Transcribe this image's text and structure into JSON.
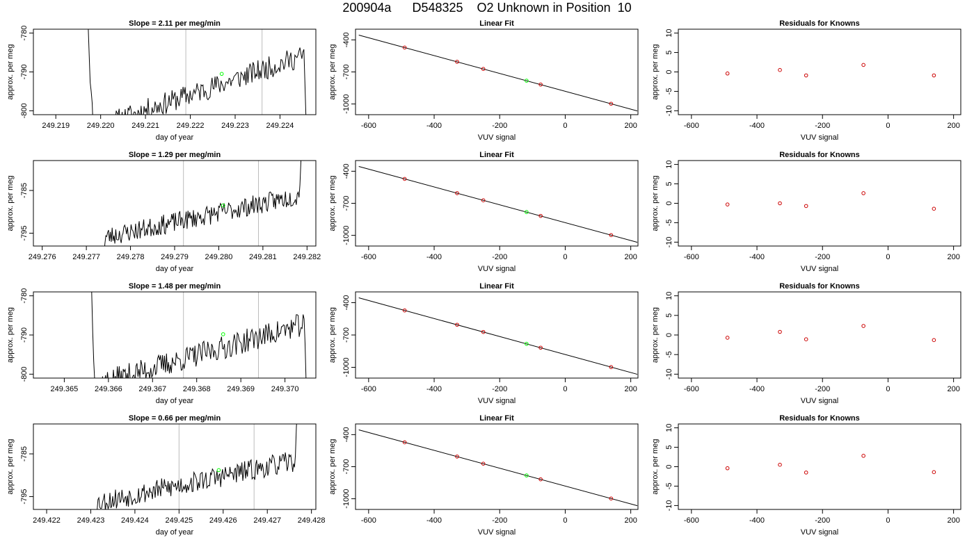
{
  "figure": {
    "title": "200904a      D548325    O2 Unknown in Position  10"
  },
  "colors": {
    "trace": "#000000",
    "unknown_point": "#00ff00",
    "known_point": "#cc0000",
    "guide_line": "#bbbbbb",
    "fit_line": "#000000"
  },
  "chart_data": [
    {
      "type": "line",
      "title": "Slope =  2.11  per meg/min",
      "xlabel": "day of year",
      "ylabel": "approx. per meg",
      "xlim": [
        249.2185,
        249.2248
      ],
      "ylim": [
        -801.0,
        -779.0
      ],
      "xticks": [
        "249.219",
        "249.220",
        "249.221",
        "249.222",
        "249.223",
        "249.224"
      ],
      "xtick_values": [
        249.219,
        249.22,
        249.221,
        249.222,
        249.223,
        249.224
      ],
      "yticks": [
        "-800",
        "-790",
        "-780"
      ],
      "ytick_values": [
        -800,
        -790,
        -780
      ],
      "vlines": [
        249.2219,
        249.2236
      ],
      "series": [
        {
          "x_start": 249.2197,
          "x_end": 249.2246,
          "base_start": -805,
          "base_end": -785.5,
          "front_y": -770,
          "front_len": 8,
          "tail_y": -808,
          "tail_len": 3,
          "seed": 11,
          "noise": 1.6
        }
      ],
      "highlight": {
        "x": 249.2227,
        "y": -790.5
      }
    },
    {
      "type": "scatter",
      "title": "Linear Fit",
      "xlabel": "VUV signal",
      "ylabel": "approx. per meg",
      "xlim": [
        -640,
        222
      ],
      "ylim": [
        -1100,
        -300
      ],
      "xticks": [
        "-600",
        "-400",
        "-200",
        "0",
        "200"
      ],
      "xtick_values": [
        -600,
        -400,
        -200,
        0,
        200
      ],
      "yticks": [
        "-1000",
        "-700",
        "-400"
      ],
      "ytick_values": [
        -1000,
        -700,
        -400
      ],
      "fit_line": {
        "x": [
          -630,
          220
        ],
        "y": [
          -355,
          -1065
        ]
      },
      "knowns": {
        "x": [
          -490,
          -330,
          -250,
          -75,
          140
        ],
        "y": [
          -472,
          -605,
          -672,
          -818,
          -998
        ]
      },
      "unknown": {
        "x": [
          -118
        ],
        "y": [
          -782
        ]
      }
    },
    {
      "type": "scatter",
      "title": "Residuals for Knowns",
      "xlabel": "VUV signal",
      "ylabel": "approx. per meg",
      "xlim": [
        -640,
        222
      ],
      "ylim": [
        -11,
        11
      ],
      "xticks": [
        "-600",
        "-400",
        "-200",
        "0",
        "200"
      ],
      "xtick_values": [
        -600,
        -400,
        -200,
        0,
        200
      ],
      "yticks": [
        "-10",
        "-5",
        "0",
        "5",
        "10"
      ],
      "ytick_values": [
        -10,
        -5,
        0,
        5,
        10
      ],
      "knowns": {
        "x": [
          -490,
          -330,
          -250,
          -75,
          140
        ],
        "y": [
          -0.4,
          0.5,
          -0.9,
          1.8,
          -0.9
        ]
      }
    },
    {
      "type": "line",
      "title": "Slope =  1.29  per meg/min",
      "xlabel": "day of year",
      "ylabel": "approx. per meg",
      "xlim": [
        249.2758,
        249.2822
      ],
      "ylim": [
        -798,
        -778
      ],
      "xticks": [
        "249.276",
        "249.277",
        "249.278",
        "249.279",
        "249.280",
        "249.281",
        "249.282"
      ],
      "xtick_values": [
        249.276,
        249.277,
        249.278,
        249.279,
        249.28,
        249.281,
        249.282
      ],
      "yticks": [
        "-795",
        "-785"
      ],
      "ytick_values": [
        -795,
        -785
      ],
      "vlines": [
        249.2792,
        249.2809
      ],
      "series": [
        {
          "x_start": 249.2774,
          "x_end": 249.2819,
          "base_start": -796,
          "base_end": -786,
          "front_y": -800,
          "front_len": 2,
          "tail_y": -770,
          "tail_len": 4,
          "seed": 23,
          "noise": 1.3
        }
      ],
      "highlight": {
        "x": 249.2801,
        "y": -788.5
      }
    },
    {
      "type": "scatter",
      "title": "Linear Fit",
      "xlabel": "VUV signal",
      "ylabel": "approx. per meg",
      "xlim": [
        -640,
        222
      ],
      "ylim": [
        -1100,
        -300
      ],
      "xticks": [
        "-600",
        "-400",
        "-200",
        "0",
        "200"
      ],
      "xtick_values": [
        -600,
        -400,
        -200,
        0,
        200
      ],
      "yticks": [
        "-1000",
        "-700",
        "-400"
      ],
      "ytick_values": [
        -1000,
        -700,
        -400
      ],
      "fit_line": {
        "x": [
          -630,
          220
        ],
        "y": [
          -355,
          -1065
        ]
      },
      "knowns": {
        "x": [
          -490,
          -330,
          -250,
          -75,
          140
        ],
        "y": [
          -472,
          -605,
          -672,
          -818,
          -998
        ]
      },
      "unknown": {
        "x": [
          -118
        ],
        "y": [
          -782
        ]
      }
    },
    {
      "type": "scatter",
      "title": "Residuals for Knowns",
      "xlabel": "VUV signal",
      "ylabel": "approx. per meg",
      "xlim": [
        -640,
        222
      ],
      "ylim": [
        -11,
        11
      ],
      "xticks": [
        "-600",
        "-400",
        "-200",
        "0",
        "200"
      ],
      "xtick_values": [
        -600,
        -400,
        -200,
        0,
        200
      ],
      "yticks": [
        "-10",
        "-5",
        "0",
        "5",
        "10"
      ],
      "ytick_values": [
        -10,
        -5,
        0,
        5,
        10
      ],
      "knowns": {
        "x": [
          -490,
          -330,
          -250,
          -75,
          140
        ],
        "y": [
          -0.3,
          0.0,
          -0.7,
          2.6,
          -1.4
        ]
      }
    },
    {
      "type": "line",
      "title": "Slope =  1.48  per meg/min",
      "xlabel": "day of year",
      "ylabel": "approx. per meg",
      "xlim": [
        249.3643,
        249.3707
      ],
      "ylim": [
        -801.0,
        -779.0
      ],
      "xticks": [
        "249.365",
        "249.366",
        "249.367",
        "249.368",
        "249.369",
        "249.370"
      ],
      "xtick_values": [
        249.365,
        249.366,
        249.367,
        249.368,
        249.369,
        249.37
      ],
      "yticks": [
        "-800",
        "-790",
        "-780"
      ],
      "ytick_values": [
        -800,
        -790,
        -780
      ],
      "vlines": [
        249.3677,
        249.3694
      ],
      "series": [
        {
          "x_start": 249.3656,
          "x_end": 249.3705,
          "base_start": -803,
          "base_end": -787,
          "front_y": -770,
          "front_len": 6,
          "tail_y": -808,
          "tail_len": 3,
          "seed": 37,
          "noise": 1.7
        }
      ],
      "highlight": {
        "x": 249.3686,
        "y": -789.8
      }
    },
    {
      "type": "scatter",
      "title": "Linear Fit",
      "xlabel": "VUV signal",
      "ylabel": "approx. per meg",
      "xlim": [
        -640,
        222
      ],
      "ylim": [
        -1100,
        -300
      ],
      "xticks": [
        "-600",
        "-400",
        "-200",
        "0",
        "200"
      ],
      "xtick_values": [
        -600,
        -400,
        -200,
        0,
        200
      ],
      "yticks": [
        "-1000",
        "-700",
        "-400"
      ],
      "ytick_values": [
        -1000,
        -700,
        -400
      ],
      "fit_line": {
        "x": [
          -630,
          220
        ],
        "y": [
          -355,
          -1065
        ]
      },
      "knowns": {
        "x": [
          -490,
          -330,
          -250,
          -75,
          140
        ],
        "y": [
          -472,
          -605,
          -672,
          -818,
          -998
        ]
      },
      "unknown": {
        "x": [
          -118
        ],
        "y": [
          -782
        ]
      }
    },
    {
      "type": "scatter",
      "title": "Residuals for Knowns",
      "xlabel": "VUV signal",
      "ylabel": "approx. per meg",
      "xlim": [
        -640,
        222
      ],
      "ylim": [
        -11,
        11
      ],
      "xticks": [
        "-600",
        "-400",
        "-200",
        "0",
        "200"
      ],
      "xtick_values": [
        -600,
        -400,
        -200,
        0,
        200
      ],
      "yticks": [
        "-10",
        "-5",
        "0",
        "5",
        "10"
      ],
      "ytick_values": [
        -10,
        -5,
        0,
        5,
        10
      ],
      "knowns": {
        "x": [
          -490,
          -330,
          -250,
          -75,
          140
        ],
        "y": [
          -0.7,
          0.8,
          -1.1,
          2.3,
          -1.3
        ]
      }
    },
    {
      "type": "line",
      "title": "Slope =  0.66  per meg/min",
      "xlabel": "day of year",
      "ylabel": "approx. per meg",
      "xlim": [
        249.4217,
        249.4281
      ],
      "ylim": [
        -798,
        -778
      ],
      "xticks": [
        "249.422",
        "249.423",
        "249.424",
        "249.425",
        "249.426",
        "249.427",
        "249.428"
      ],
      "xtick_values": [
        249.422,
        249.423,
        249.424,
        249.425,
        249.426,
        249.427,
        249.428
      ],
      "yticks": [
        "-795",
        "-785"
      ],
      "ytick_values": [
        -795,
        -785
      ],
      "vlines": [
        249.425,
        249.4267
      ],
      "series": [
        {
          "x_start": 249.4231,
          "x_end": 249.4277,
          "base_start": -796.5,
          "base_end": -786.5,
          "front_y": -802,
          "front_len": 2,
          "tail_y": -768,
          "tail_len": 3,
          "seed": 53,
          "noise": 1.4
        }
      ],
      "highlight": {
        "x": 249.4259,
        "y": -788.8
      }
    },
    {
      "type": "scatter",
      "title": "Linear Fit",
      "xlabel": "VUV signal",
      "ylabel": "approx. per meg",
      "xlim": [
        -640,
        222
      ],
      "ylim": [
        -1100,
        -300
      ],
      "xticks": [
        "-600",
        "-400",
        "-200",
        "0",
        "200"
      ],
      "xtick_values": [
        -600,
        -400,
        -200,
        0,
        200
      ],
      "yticks": [
        "-1000",
        "-700",
        "-400"
      ],
      "ytick_values": [
        -1000,
        -700,
        -400
      ],
      "fit_line": {
        "x": [
          -630,
          220
        ],
        "y": [
          -355,
          -1065
        ]
      },
      "knowns": {
        "x": [
          -490,
          -330,
          -250,
          -75,
          140
        ],
        "y": [
          -472,
          -605,
          -672,
          -818,
          -998
        ]
      },
      "unknown": {
        "x": [
          -118
        ],
        "y": [
          -782
        ]
      }
    },
    {
      "type": "scatter",
      "title": "Residuals for Knowns",
      "xlabel": "VUV signal",
      "ylabel": "approx. per meg",
      "xlim": [
        -640,
        222
      ],
      "ylim": [
        -11,
        11
      ],
      "xticks": [
        "-600",
        "-400",
        "-200",
        "0",
        "200"
      ],
      "xtick_values": [
        -600,
        -400,
        -200,
        0,
        200
      ],
      "yticks": [
        "-10",
        "-5",
        "0",
        "5",
        "10"
      ],
      "ytick_values": [
        -10,
        -5,
        0,
        5,
        10
      ],
      "knowns": {
        "x": [
          -490,
          -330,
          -250,
          -75,
          140
        ],
        "y": [
          -0.4,
          0.5,
          -1.5,
          2.8,
          -1.4
        ]
      }
    }
  ]
}
